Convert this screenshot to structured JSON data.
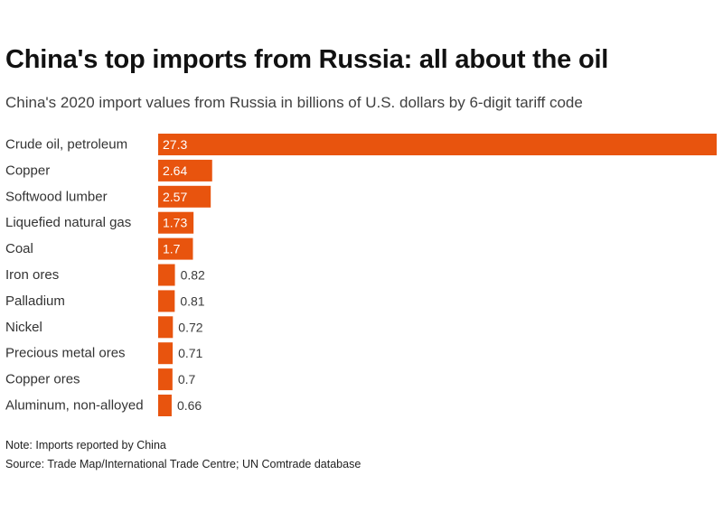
{
  "header": {
    "title": "China's top imports from Russia: all about the oil",
    "subtitle": "China's 2020 import values from Russia in billions of U.S. dollars by 6-digit tariff code"
  },
  "footer": {
    "note": "Note: Imports reported by China",
    "source": "Source: Trade Map/International Trade Centre; UN Comtrade database"
  },
  "colors": {
    "bar": "#e8540e",
    "label_inside": "#ffffff",
    "label_outside": "#3a3a3a",
    "category_text": "#333333"
  },
  "chart_data": {
    "type": "bar",
    "orientation": "horizontal",
    "title": "China's top imports from Russia: all about the oil",
    "subtitle": "China's 2020 import values from Russia in billions of U.S. dollars by 6-digit tariff code",
    "categories": [
      "Crude oil, petroleum",
      "Copper",
      "Softwood lumber",
      "Liquefied natural gas",
      "Coal",
      "Iron ores",
      "Palladium",
      "Nickel",
      "Precious metal ores",
      "Copper ores",
      "Aluminum, non-alloyed"
    ],
    "values": [
      27.3,
      2.64,
      2.57,
      1.73,
      1.7,
      0.82,
      0.81,
      0.72,
      0.71,
      0.7,
      0.66
    ],
    "value_labels": [
      "27.3",
      "2.64",
      "2.57",
      "1.73",
      "1.7",
      "0.82",
      "0.81",
      "0.72",
      "0.71",
      "0.7",
      "0.66"
    ],
    "xlim": [
      0,
      27.3
    ],
    "grid": false,
    "legend": "none"
  }
}
